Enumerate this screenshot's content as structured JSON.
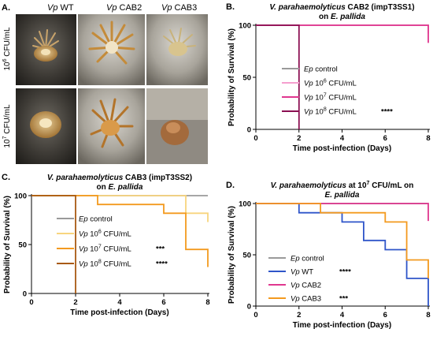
{
  "figure": {
    "panel_a": {
      "label": "A.",
      "column_headers": [
        {
          "italic": "Vp",
          "rest": " WT"
        },
        {
          "italic": "Vp",
          "rest": " CAB2"
        },
        {
          "italic": "Vp",
          "rest": " CAB3"
        }
      ],
      "row_labels": [
        {
          "base": "10",
          "exp": "6",
          "rest": " CFU/mL"
        },
        {
          "base": "10",
          "exp": "7",
          "rest": " CFU/mL"
        }
      ]
    }
  },
  "chart_data": [
    {
      "panel": "B.",
      "type": "line",
      "subtype": "kaplan-meier",
      "title_line1": "V. parahaemolyticus CAB2 (impT3SS1)",
      "title_line2": "on E. pallida",
      "xlabel": "Time post-infection (Days)",
      "ylabel": "Probability of Survival (%)",
      "xlim": [
        0,
        8
      ],
      "ylim": [
        0,
        100
      ],
      "xticks": [
        "0",
        "2",
        "4",
        "6",
        "8"
      ],
      "yticks": [
        "0",
        "50",
        "100"
      ],
      "legend_placement": "inside-right",
      "series": [
        {
          "name": "Ep control",
          "color": "#9a9a9a",
          "sig": "",
          "x": [
            0,
            8
          ],
          "y": [
            100,
            100
          ]
        },
        {
          "name": "Vp 10^6 CFU/mL",
          "label_prefix": "Vp",
          "label_base": "10",
          "label_exp": "6",
          "label_unit": " CFU/mL",
          "color": "#f59fcf",
          "sig": "",
          "x": [
            0,
            8,
            8
          ],
          "y": [
            100,
            100,
            92
          ]
        },
        {
          "name": "Vp 10^7 CFU/mL",
          "label_prefix": "Vp",
          "label_base": "10",
          "label_exp": "7",
          "label_unit": " CFU/mL",
          "color": "#e0378f",
          "sig": "",
          "x": [
            0,
            8,
            8
          ],
          "y": [
            100,
            100,
            83
          ]
        },
        {
          "name": "Vp 10^8 CFU/mL",
          "label_prefix": "Vp",
          "label_base": "10",
          "label_exp": "8",
          "label_unit": " CFU/mL",
          "color": "#8b0f52",
          "sig": "****",
          "x": [
            0,
            2,
            2
          ],
          "y": [
            100,
            100,
            0
          ]
        }
      ]
    },
    {
      "panel": "C.",
      "type": "line",
      "subtype": "kaplan-meier",
      "title_line1": "V. parahaemolyticus CAB3 (impT3SS2)",
      "title_line2": "on E. pallida",
      "xlabel": "Time post-infection (Days)",
      "ylabel": "Probability of Survival (%)",
      "xlim": [
        0,
        8
      ],
      "ylim": [
        0,
        100
      ],
      "xticks": [
        "0",
        "2",
        "4",
        "6",
        "8"
      ],
      "yticks": [
        "0",
        "50",
        "100"
      ],
      "legend_placement": "inside-right",
      "series": [
        {
          "name": "Ep control",
          "color": "#9a9a9a",
          "sig": "",
          "x": [
            0,
            8
          ],
          "y": [
            100,
            100
          ]
        },
        {
          "name": "Vp 10^6 CFU/mL",
          "label_prefix": "Vp",
          "label_base": "10",
          "label_exp": "6",
          "label_unit": " CFU/mL",
          "color": "#f8d57e",
          "sig": "",
          "x": [
            0,
            7,
            7,
            8,
            8
          ],
          "y": [
            100,
            100,
            82,
            82,
            73
          ]
        },
        {
          "name": "Vp 10^7 CFU/mL",
          "label_prefix": "Vp",
          "label_base": "10",
          "label_exp": "7",
          "label_unit": " CFU/mL",
          "color": "#f39a1f",
          "sig": "***",
          "x": [
            0,
            3,
            3,
            6,
            6,
            7,
            7,
            8,
            8
          ],
          "y": [
            100,
            100,
            91,
            91,
            82,
            82,
            45,
            45,
            27
          ]
        },
        {
          "name": "Vp 10^8 CFU/mL",
          "label_prefix": "Vp",
          "label_base": "10",
          "label_exp": "8",
          "label_unit": " CFU/mL",
          "color": "#a85a12",
          "sig": "****",
          "x": [
            0,
            2,
            2
          ],
          "y": [
            100,
            100,
            0
          ]
        }
      ]
    },
    {
      "panel": "D.",
      "type": "line",
      "subtype": "kaplan-meier",
      "title_line1": "V. parahaemolyticus at 10^7 CFU/mL on",
      "title_line1_parts": {
        "pre": "V. parahaemolyticus",
        "mid": " at 10",
        "exp": "7",
        "post": " CFU/mL on"
      },
      "title_line2": "E. pallida",
      "xlabel": "Time post-infection (Days)",
      "ylabel": "Probability of Survival (%)",
      "xlim": [
        0,
        8
      ],
      "ylim": [
        0,
        100
      ],
      "xticks": [
        "0",
        "2",
        "4",
        "6",
        "8"
      ],
      "yticks": [
        "0",
        "50",
        "100"
      ],
      "legend_placement": "bottom-left",
      "series": [
        {
          "name": "Ep control",
          "color": "#9a9a9a",
          "sig": "",
          "x": [
            0,
            8
          ],
          "y": [
            100,
            100
          ]
        },
        {
          "name": "Vp WT",
          "label_prefix": "Vp",
          "label_unit": " WT",
          "color": "#2f55c9",
          "sig": "****",
          "x": [
            0,
            2,
            2,
            4,
            4,
            5,
            5,
            6,
            6,
            7,
            7,
            8,
            8
          ],
          "y": [
            100,
            100,
            91,
            91,
            82,
            82,
            64,
            64,
            55,
            55,
            27,
            27,
            0
          ]
        },
        {
          "name": "Vp CAB2",
          "label_prefix": "Vp",
          "label_unit": " CAB2",
          "color": "#e0378f",
          "sig": "",
          "x": [
            0,
            8,
            8
          ],
          "y": [
            100,
            100,
            83
          ]
        },
        {
          "name": "Vp CAB3",
          "label_prefix": "Vp",
          "label_unit": " CAB3",
          "color": "#f39a1f",
          "sig": "***",
          "x": [
            0,
            3,
            3,
            6,
            6,
            7,
            7,
            8,
            8
          ],
          "y": [
            100,
            100,
            91,
            91,
            82,
            82,
            45,
            45,
            27
          ]
        }
      ]
    }
  ]
}
